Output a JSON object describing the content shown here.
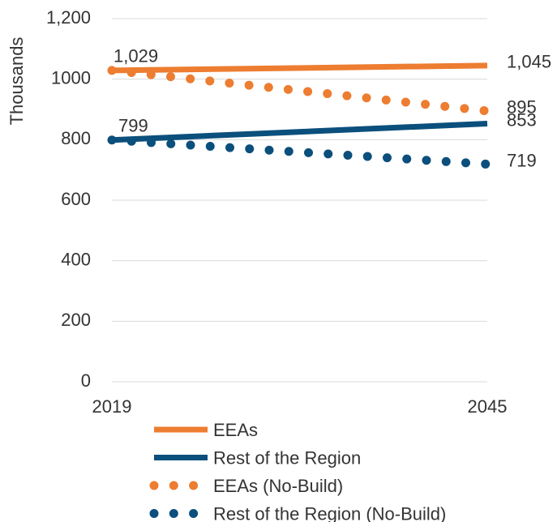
{
  "chart_data": {
    "type": "line",
    "y_label": "Thousands",
    "x": [
      2019,
      2045
    ],
    "xlim": [
      2019,
      2045
    ],
    "xticks": [
      2019,
      2045
    ],
    "ylim": [
      0,
      1200
    ],
    "yticks": [
      0,
      200,
      400,
      600,
      800,
      1000,
      {
        "value": 1200,
        "label": "1,200"
      }
    ],
    "grid": true,
    "legend": "bottom",
    "series": [
      {
        "name": "EEAs",
        "color": "#ed7d31",
        "style": "solid",
        "values": [
          1029,
          1045
        ],
        "value_labels": [
          "1,029",
          "1,045"
        ]
      },
      {
        "name": "Rest of the Region",
        "color": "#0b4f7c",
        "style": "solid",
        "values": [
          799,
          853
        ],
        "value_labels": [
          "799",
          "853"
        ]
      },
      {
        "name": "EEAs (No-Build)",
        "color": "#ed7d31",
        "style": "dotted",
        "values": [
          1029,
          895
        ],
        "value_labels": [
          null,
          "895"
        ]
      },
      {
        "name": "Rest of the Region (No-Build)",
        "color": "#0b4f7c",
        "style": "dotted",
        "values": [
          799,
          719
        ],
        "value_labels": [
          null,
          "719"
        ]
      }
    ]
  }
}
